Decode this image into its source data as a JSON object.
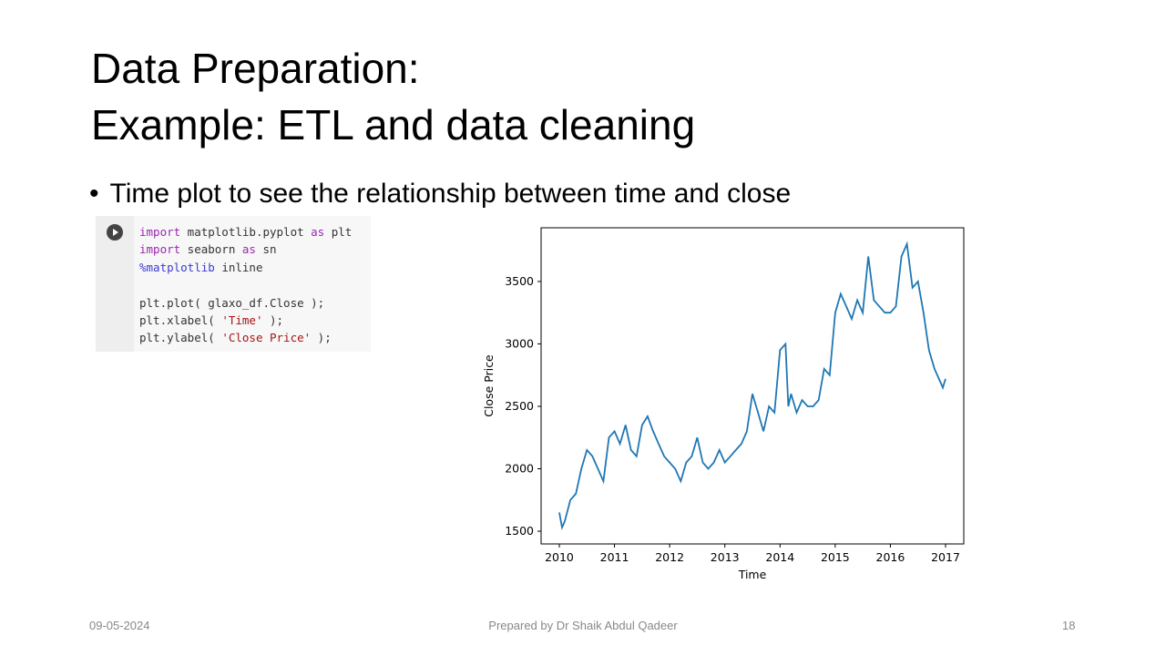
{
  "slide": {
    "title_lines": [
      "Data Preparation:",
      "Example: ETL and data cleaning"
    ],
    "bullet": "Time plot to see the relationship between time and close",
    "code_blocks": [
      [
        [
          {
            "text": "import",
            "color": "#9c27b0"
          },
          {
            "text": " matplotlib.pyplot ",
            "color": "#333333"
          },
          {
            "text": "as",
            "color": "#9c27b0"
          },
          {
            "text": " plt",
            "color": "#333333"
          }
        ],
        [
          {
            "text": "import",
            "color": "#9c27b0"
          },
          {
            "text": " seaborn ",
            "color": "#333333"
          },
          {
            "text": "as",
            "color": "#9c27b0"
          },
          {
            "text": " sn",
            "color": "#333333"
          }
        ],
        [
          {
            "text": "%matplotlib",
            "color": "#3b3bcf"
          },
          {
            "text": " inline",
            "color": "#333333"
          }
        ]
      ],
      [
        [
          {
            "text": "plt.plot( glaxo_df.Close );",
            "color": "#333333"
          }
        ],
        [
          {
            "text": "plt.xlabel( ",
            "color": "#333333"
          },
          {
            "text": "'Time'",
            "color": "#a31515"
          },
          {
            "text": " );",
            "color": "#333333"
          }
        ],
        [
          {
            "text": "plt.ylabel( ",
            "color": "#333333"
          },
          {
            "text": "'Close Price'",
            "color": "#a31515"
          },
          {
            "text": " );",
            "color": "#333333"
          }
        ]
      ]
    ],
    "footer": {
      "date": "09-05-2024",
      "author": "Prepared by Dr Shaik Abdul Qadeer",
      "page": "18"
    }
  },
  "chart_data": {
    "type": "line",
    "x_label": "Time",
    "y_label": "Close Price",
    "x": [
      2010.0,
      2010.05,
      2010.1,
      2010.2,
      2010.3,
      2010.4,
      2010.5,
      2010.6,
      2010.7,
      2010.8,
      2010.9,
      2011.0,
      2011.1,
      2011.2,
      2011.3,
      2011.4,
      2011.5,
      2011.6,
      2011.7,
      2011.8,
      2011.9,
      2012.0,
      2012.1,
      2012.2,
      2012.3,
      2012.4,
      2012.5,
      2012.6,
      2012.7,
      2012.8,
      2012.9,
      2013.0,
      2013.1,
      2013.2,
      2013.3,
      2013.4,
      2013.5,
      2013.6,
      2013.7,
      2013.8,
      2013.9,
      2014.0,
      2014.1,
      2014.15,
      2014.2,
      2014.3,
      2014.4,
      2014.5,
      2014.6,
      2014.7,
      2014.8,
      2014.9,
      2015.0,
      2015.1,
      2015.2,
      2015.3,
      2015.4,
      2015.5,
      2015.6,
      2015.7,
      2015.8,
      2015.9,
      2016.0,
      2016.1,
      2016.2,
      2016.3,
      2016.4,
      2016.5,
      2016.6,
      2016.7,
      2016.8,
      2016.9,
      2016.95,
      2017.0
    ],
    "series": [
      {
        "name": "Close",
        "color": "#1f77b4",
        "values": [
          1650,
          1530,
          1580,
          1750,
          1800,
          2000,
          2150,
          2100,
          2000,
          1900,
          2250,
          2300,
          2200,
          2350,
          2150,
          2100,
          2350,
          2420,
          2300,
          2200,
          2100,
          2050,
          2000,
          1900,
          2050,
          2100,
          2250,
          2050,
          2000,
          2050,
          2150,
          2050,
          2100,
          2150,
          2200,
          2300,
          2600,
          2450,
          2300,
          2500,
          2450,
          2950,
          3000,
          2500,
          2600,
          2450,
          2550,
          2500,
          2500,
          2550,
          2800,
          2750,
          3250,
          3400,
          3300,
          3200,
          3350,
          3250,
          3700,
          3350,
          3300,
          3250,
          3250,
          3300,
          3700,
          3800,
          3450,
          3500,
          3250,
          2950,
          2800,
          2700,
          2650,
          2720
        ]
      }
    ],
    "xlim": [
      2009.67,
      2017.33
    ],
    "xticks": [
      2010,
      2011,
      2012,
      2013,
      2014,
      2015,
      2016,
      2017
    ],
    "ylim": [
      1398,
      3930
    ],
    "yticks": [
      1500,
      2000,
      2500,
      3000,
      3500
    ]
  }
}
